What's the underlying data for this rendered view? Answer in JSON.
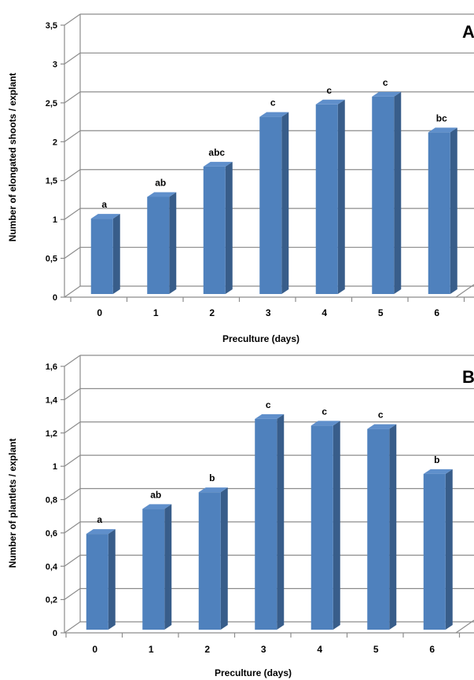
{
  "colors": {
    "bar_front": "#4f81bd",
    "bar_side": "#385d8a",
    "bar_top": "#5f8fcb",
    "grid": "#8c8c8c",
    "text": "#000000"
  },
  "chart_data": [
    {
      "type": "bar",
      "panel_label": "A",
      "categories": [
        "0",
        "1",
        "2",
        "3",
        "4",
        "5",
        "6"
      ],
      "values": [
        0.98,
        1.26,
        1.65,
        2.29,
        2.45,
        2.55,
        2.09
      ],
      "bar_labels": [
        "a",
        "ab",
        "abc",
        "c",
        "c",
        "c",
        "bc"
      ],
      "xlabel": "Preculture (days)",
      "ylabel": "Number  of  elongated shoots / explant",
      "ylim": [
        0,
        3.5
      ],
      "yticks": [
        "0",
        "0,5",
        "1",
        "1,5",
        "2",
        "2,5",
        "3",
        "3,5"
      ],
      "grid": true,
      "three_d": true
    },
    {
      "type": "bar",
      "panel_label": "B",
      "categories": [
        "0",
        "1",
        "2",
        "3",
        "4",
        "5",
        "6"
      ],
      "values": [
        0.58,
        0.73,
        0.83,
        1.27,
        1.23,
        1.21,
        0.94
      ],
      "bar_labels": [
        "a",
        "ab",
        "b",
        "c",
        "c",
        "c",
        "b"
      ],
      "xlabel": "Preculture (days)",
      "ylabel": "Number  of   plantlets / explant",
      "ylim": [
        0,
        1.6
      ],
      "yticks": [
        "0",
        "0,2",
        "0,4",
        "0,6",
        "0,8",
        "1",
        "1,2",
        "1,4",
        "1,6"
      ],
      "grid": true,
      "three_d": true
    }
  ]
}
